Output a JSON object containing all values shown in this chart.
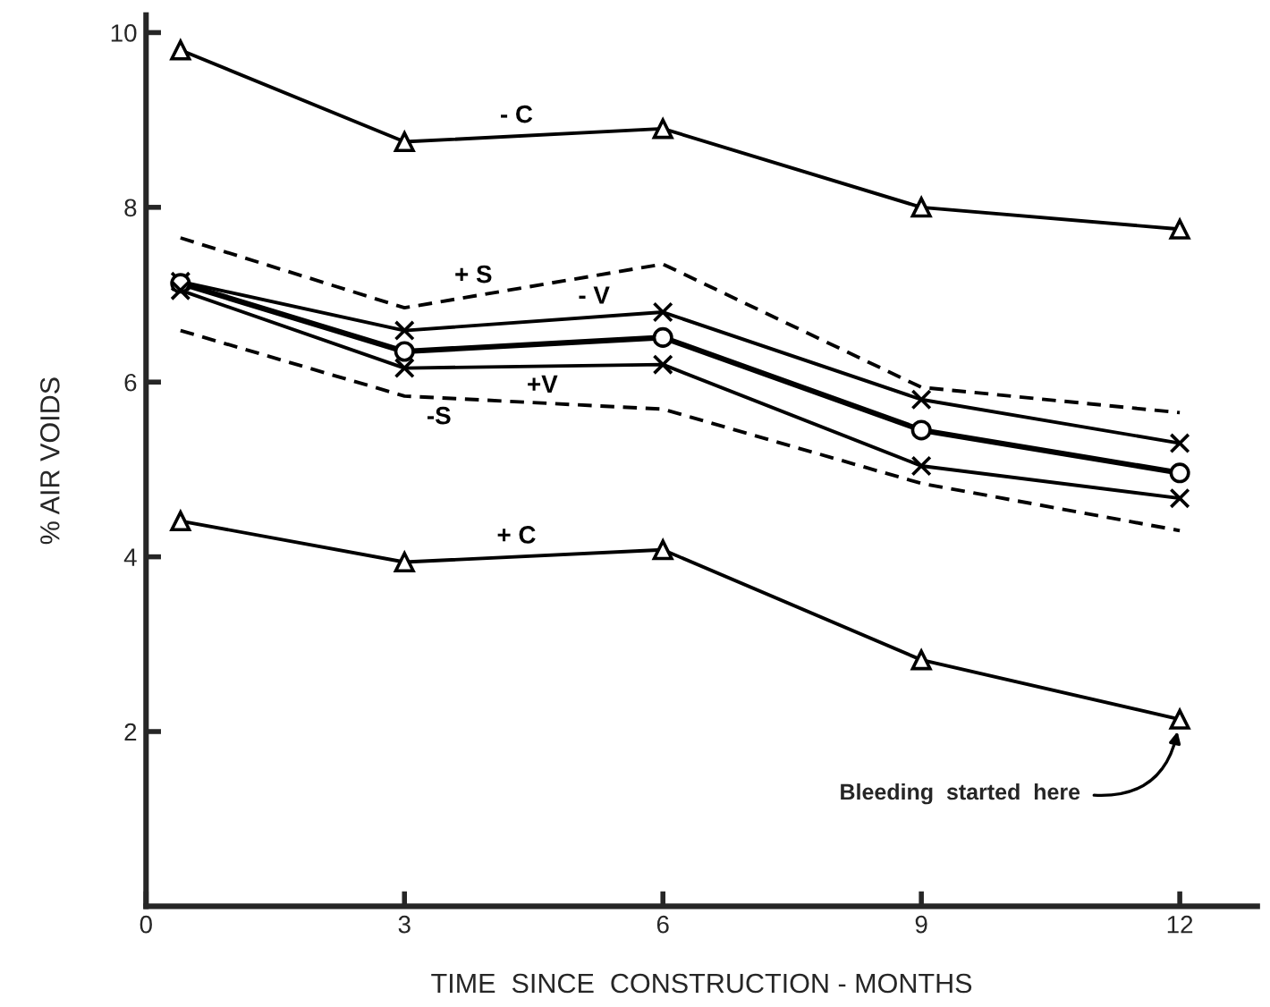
{
  "chart_data": {
    "type": "line",
    "xlabel": "TIME  SINCE  CONSTRUCTION - MONTHS",
    "ylabel": "% AIR VOIDS",
    "xlim": [
      0,
      12.9
    ],
    "xticks": [
      0,
      3,
      6,
      9,
      12
    ],
    "ylim": [
      0,
      10.2
    ],
    "yticks": [
      2,
      4,
      6,
      8,
      10
    ],
    "grid": false,
    "legend": false,
    "series": [
      {
        "name": "- C",
        "x": [
          0.4,
          3,
          6,
          9,
          12
        ],
        "values": [
          9.8,
          8.75,
          8.9,
          8.0,
          7.75
        ],
        "color": "#000000",
        "marker": "triangle",
        "line_style": "solid"
      },
      {
        "name": "+ S",
        "x": [
          0.4,
          3,
          6,
          9,
          12
        ],
        "values": [
          7.65,
          6.85,
          7.35,
          5.94,
          5.65
        ],
        "color": "#000000",
        "marker": "none",
        "line_style": "dashed"
      },
      {
        "name": "- V",
        "x": [
          0.4,
          3,
          6,
          9,
          12
        ],
        "values": [
          7.15,
          6.59,
          6.8,
          5.8,
          5.3
        ],
        "color": "#000000",
        "marker": "cross",
        "line_style": "solid"
      },
      {
        "x": [
          0.4,
          3,
          6,
          9,
          12
        ],
        "values": [
          7.13,
          6.35,
          6.51,
          5.45,
          4.96
        ],
        "color": "#000000",
        "marker": "circle",
        "line_style": "solid"
      },
      {
        "name": "+V",
        "x": [
          0.4,
          3,
          6,
          9,
          12
        ],
        "values": [
          7.05,
          6.16,
          6.2,
          5.04,
          4.67
        ],
        "color": "#000000",
        "marker": "cross",
        "line_style": "solid"
      },
      {
        "name": "-S",
        "x": [
          0.4,
          3,
          6,
          9,
          12
        ],
        "values": [
          6.59,
          5.84,
          5.69,
          4.84,
          4.3
        ],
        "color": "#000000",
        "marker": "none",
        "line_style": "dashed"
      },
      {
        "name": "+ C",
        "x": [
          0.4,
          3,
          6,
          9,
          12
        ],
        "values": [
          4.41,
          3.94,
          4.08,
          2.82,
          2.14
        ],
        "color": "#000000",
        "marker": "triangle",
        "line_style": "solid"
      }
    ],
    "annotations": [
      {
        "text": "Bleeding  started  here",
        "x": 12,
        "y": 2.14
      }
    ]
  }
}
